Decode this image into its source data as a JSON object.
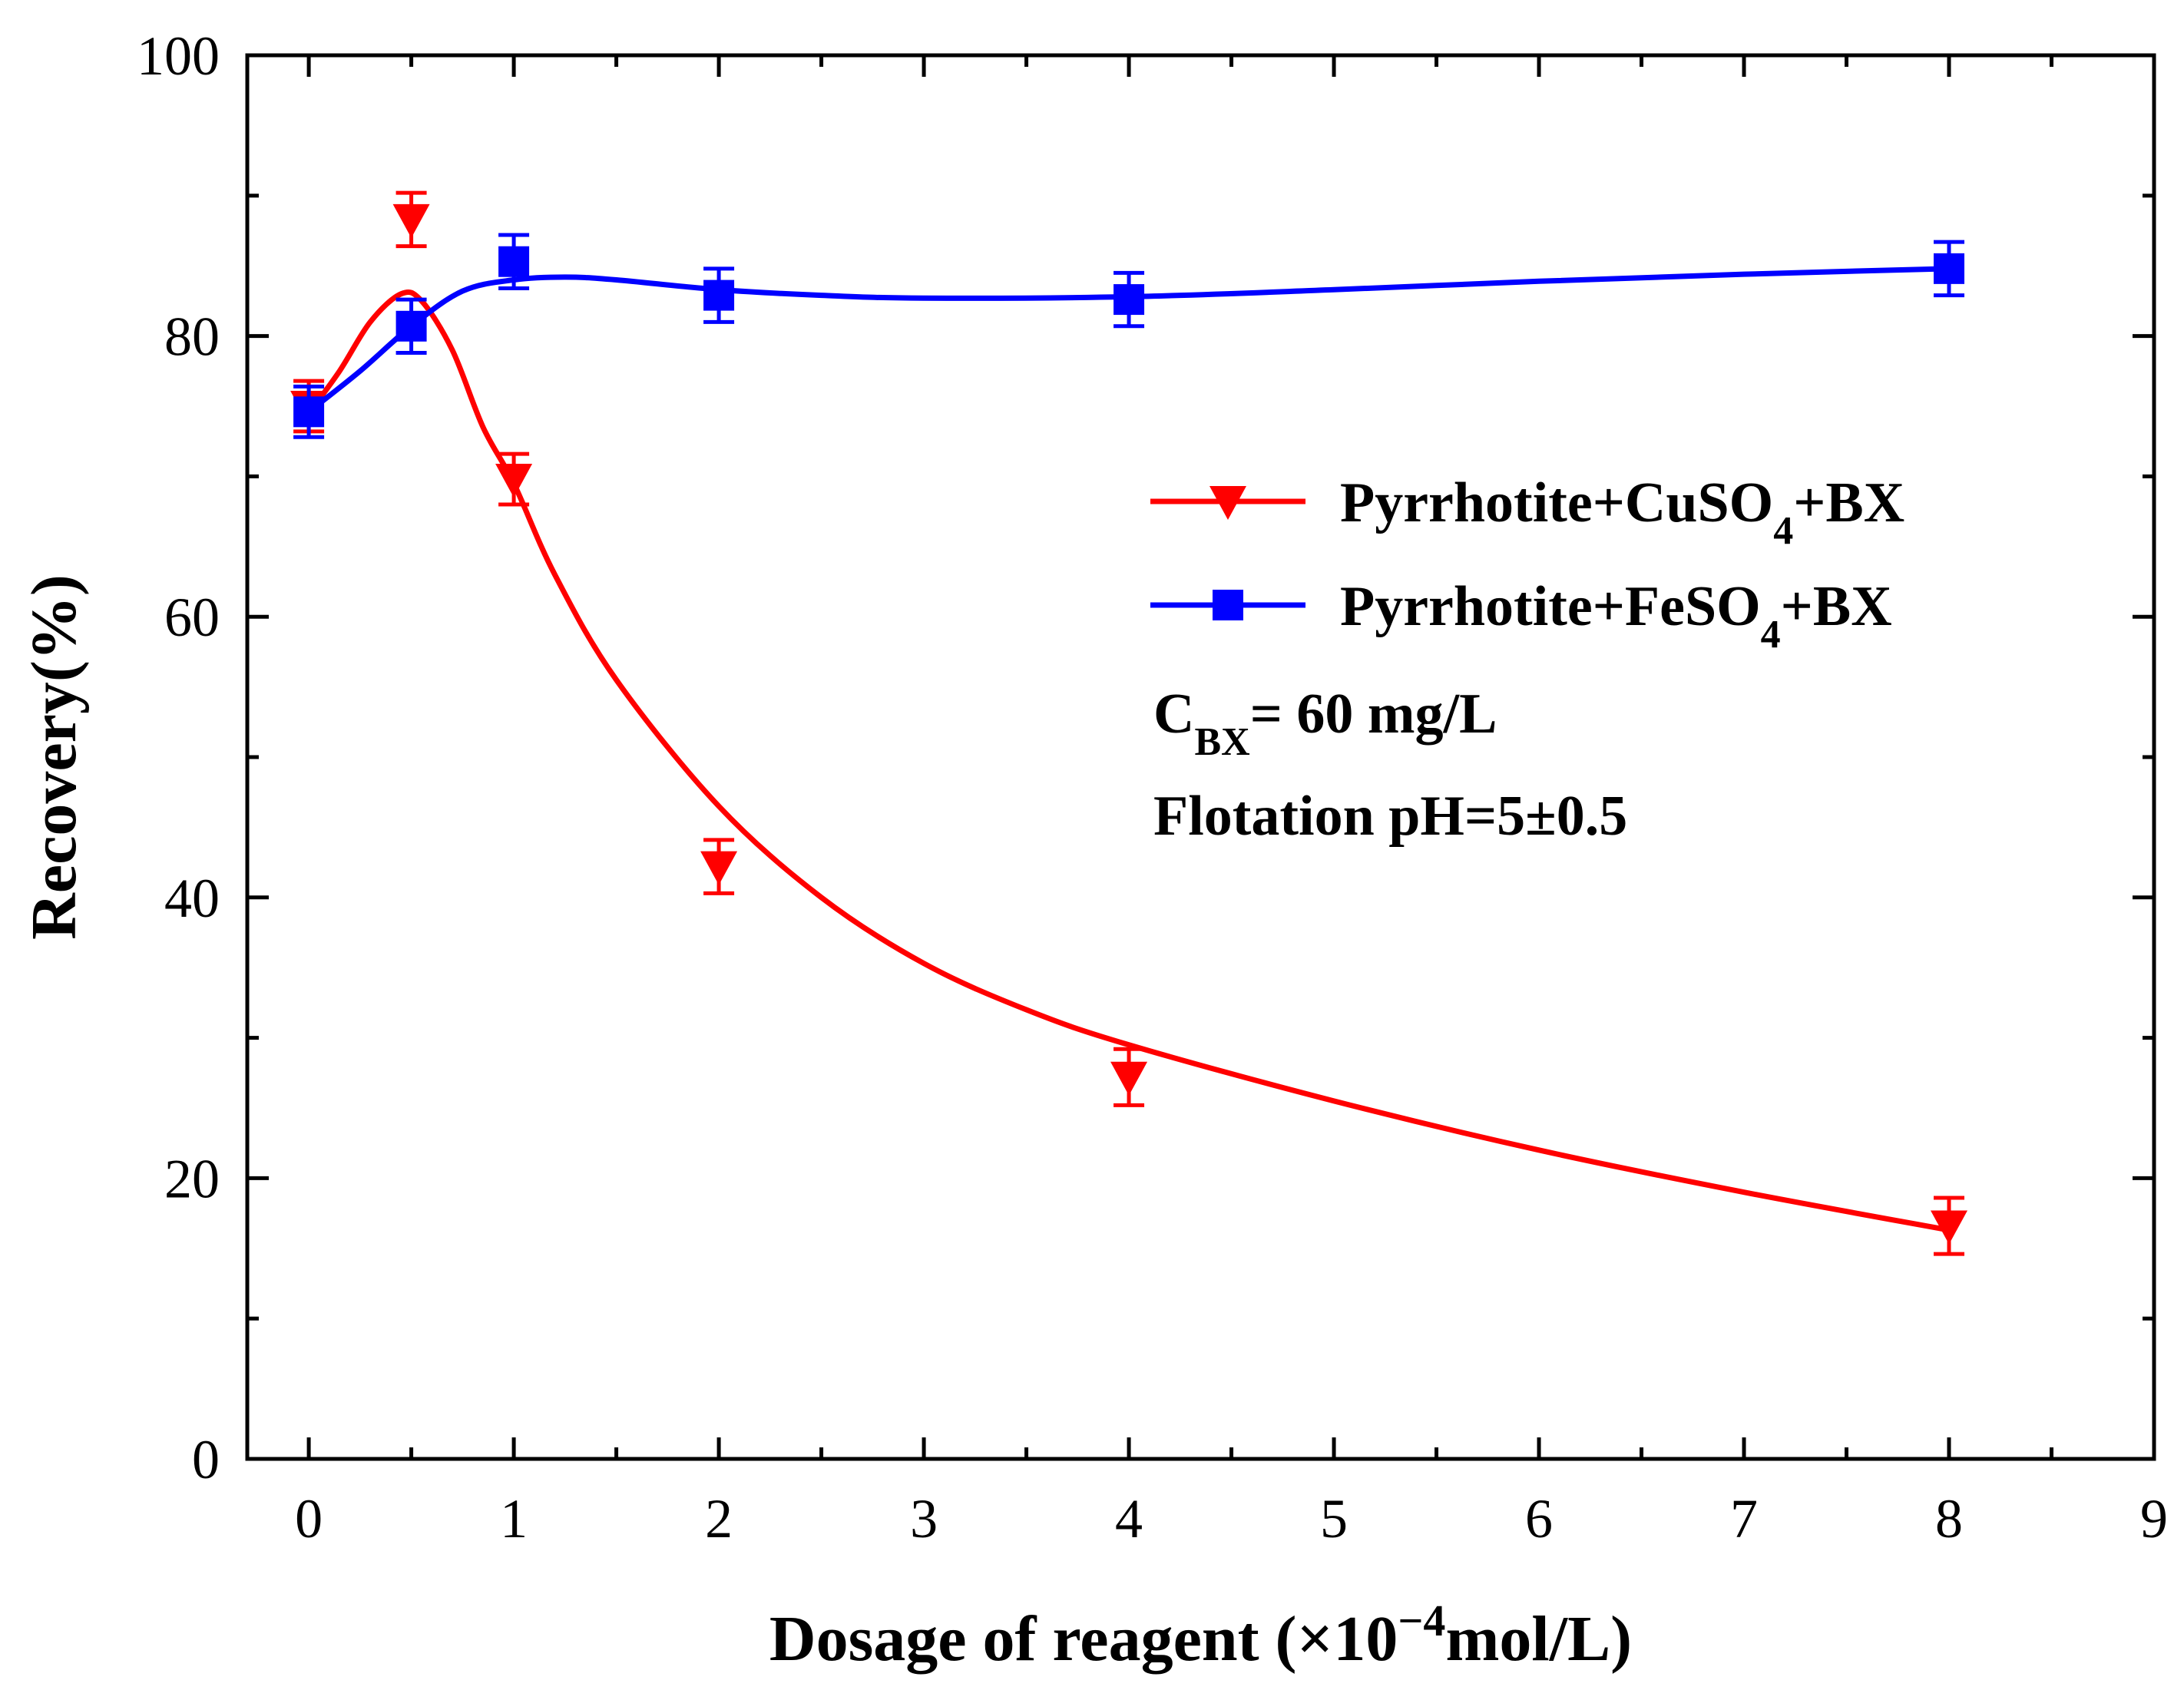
{
  "chart_data": {
    "type": "line",
    "title": "",
    "xlabel_text": "Dosage of reagent (×10",
    "xlabel_exp": "−4",
    "xlabel_unit": "mol/L)",
    "ylabel": "Recovery(%)",
    "xlim": [
      -0.3,
      9
    ],
    "ylim": [
      0,
      100
    ],
    "x_ticks": [
      0,
      1,
      2,
      3,
      4,
      5,
      6,
      7,
      8,
      9
    ],
    "x_tick_labels": [
      "0",
      "1",
      "2",
      "3",
      "4",
      "5",
      "6",
      "7",
      "8",
      "9"
    ],
    "y_ticks": [
      0,
      20,
      40,
      60,
      80,
      100
    ],
    "y_tick_labels": [
      "0",
      "20",
      "40",
      "60",
      "80",
      "100"
    ],
    "series": [
      {
        "name": "Pyrrhotite+CuSO4+BX",
        "legend_main": "Pyrrhotite+CuSO",
        "legend_sub": "4",
        "legend_tail": "+BX",
        "color": "#ff0000",
        "marker": "triangle-down",
        "x": [
          0,
          0.5,
          1,
          2,
          4,
          8
        ],
        "y": [
          75.0,
          88.3,
          69.8,
          42.2,
          27.2,
          16.6
        ],
        "err": [
          1.8,
          1.9,
          1.8,
          1.9,
          2.0,
          2.0
        ],
        "curve_x": [
          0,
          0.15,
          0.3,
          0.45,
          0.55,
          0.7,
          0.85,
          1.0,
          1.2,
          1.5,
          2.0,
          2.5,
          3.0,
          3.5,
          4.0,
          5.0,
          6.0,
          7.0,
          8.0
        ],
        "curve_y": [
          74.5,
          77.5,
          81.0,
          83.0,
          82.5,
          79.0,
          73.5,
          69.5,
          63.0,
          55.5,
          46.5,
          40.0,
          35.3,
          32.0,
          29.5,
          25.5,
          22.0,
          19.0,
          16.3
        ]
      },
      {
        "name": "Pyrrhotite+FeSO4+BX",
        "legend_main": "Pyrrhotite+FeSO",
        "legend_sub": "4",
        "legend_tail": "+BX",
        "color": "#0000ff",
        "marker": "square",
        "x": [
          0,
          0.5,
          1,
          2,
          4,
          8
        ],
        "y": [
          74.6,
          80.7,
          85.3,
          82.9,
          82.6,
          84.8
        ],
        "err": [
          1.8,
          1.9,
          1.9,
          1.9,
          1.9,
          1.9
        ],
        "curve_x": [
          0,
          0.25,
          0.5,
          0.75,
          1.0,
          1.25,
          1.5,
          2.0,
          2.5,
          3.0,
          4.0,
          5.0,
          6.0,
          7.0,
          8.0
        ],
        "curve_y": [
          74.6,
          77.5,
          80.7,
          83.2,
          84.0,
          84.2,
          84.0,
          83.3,
          82.9,
          82.7,
          82.8,
          83.3,
          83.9,
          84.4,
          84.8
        ]
      }
    ],
    "legend_position": "top-right",
    "grid": false,
    "annotations": [
      {
        "main": "C",
        "sub": "BX",
        "tail": "= 60 mg/L"
      },
      {
        "main": "Flotation pH=5±0.5",
        "sub": "",
        "tail": ""
      }
    ]
  }
}
